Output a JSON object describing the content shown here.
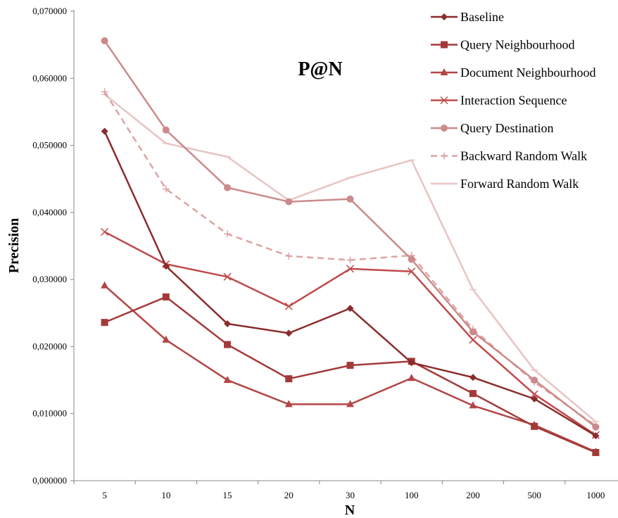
{
  "chart_data": {
    "type": "line",
    "title": "P@N",
    "xlabel": "N",
    "ylabel": "Precision",
    "categories": [
      "5",
      "10",
      "15",
      "20",
      "30",
      "100",
      "200",
      "500",
      "1000"
    ],
    "ylim": [
      0,
      0.07
    ],
    "yticks": [
      "0,000000",
      "0,010000",
      "0,020000",
      "0,030000",
      "0,040000",
      "0,050000",
      "0,060000",
      "0,070000"
    ],
    "grid": false,
    "legend_position": "top-right",
    "series": [
      {
        "name": "Baseline",
        "color": "#8b2c2c",
        "marker": "diamond",
        "dashed": false,
        "values": [
          0.0521,
          0.032,
          0.0234,
          0.022,
          0.0257,
          0.0176,
          0.0154,
          0.0122,
          0.0067
        ]
      },
      {
        "name": "Query Neighbourhood",
        "color": "#a33a3a",
        "marker": "square",
        "dashed": false,
        "values": [
          0.0236,
          0.0274,
          0.0203,
          0.0152,
          0.0172,
          0.0178,
          0.013,
          0.0081,
          0.0042
        ]
      },
      {
        "name": "Document Neighbourhood",
        "color": "#b34545",
        "marker": "triangle",
        "dashed": false,
        "values": [
          0.0291,
          0.021,
          0.015,
          0.0114,
          0.0114,
          0.0153,
          0.0112,
          0.0083,
          0.0043
        ]
      },
      {
        "name": "Interaction Sequence",
        "color": "#bf4a4a",
        "marker": "x",
        "dashed": false,
        "values": [
          0.0371,
          0.0323,
          0.0304,
          0.026,
          0.0316,
          0.0312,
          0.021,
          0.0129,
          0.0068
        ]
      },
      {
        "name": "Query Destination",
        "color": "#cc8a8a",
        "marker": "circle",
        "dashed": false,
        "values": [
          0.0656,
          0.0523,
          0.0437,
          0.0416,
          0.042,
          0.033,
          0.0222,
          0.015,
          0.008
        ]
      },
      {
        "name": "Backward Random Walk",
        "color": "#dca4a4",
        "marker": "plus",
        "dashed": true,
        "values": [
          0.058,
          0.0435,
          0.0368,
          0.0335,
          0.0329,
          0.0336,
          0.0226,
          0.0147,
          0.0082
        ]
      },
      {
        "name": "Forward Random Walk",
        "color": "#e8c4c4",
        "marker": "dash",
        "dashed": false,
        "values": [
          0.0576,
          0.0503,
          0.0483,
          0.0418,
          0.0452,
          0.0478,
          0.0285,
          0.0165,
          0.0088
        ]
      }
    ]
  }
}
